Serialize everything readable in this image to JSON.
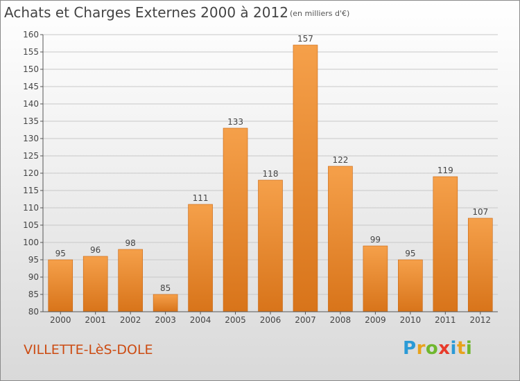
{
  "page": {
    "title": "Achats et Charges Externes 2000 à 2012",
    "subtitle": "(en milliers d'€)",
    "town": "VILLETTE-LèS-DOLE",
    "logo_letters": [
      "P",
      "r",
      "o",
      "x",
      "i",
      "t",
      "i"
    ],
    "logo_colors": [
      "#2a9ad6",
      "#e8a21c",
      "#6fb72e",
      "#e83b2b",
      "#2a9ad6",
      "#e8a21c",
      "#6fb72e"
    ]
  },
  "colors": {
    "bar_top": "#f5a04a",
    "bar_bottom": "#d8741a",
    "bar_edge": "#c96510",
    "grid": "#c8c8c8",
    "axis": "#555555",
    "text": "#444444",
    "town": "#cc4b12"
  },
  "chart_data": {
    "type": "bar",
    "title": "Achats et Charges Externes 2000 à 2012",
    "subtitle": "(en milliers d'€)",
    "categories": [
      "2000",
      "2001",
      "2002",
      "2003",
      "2004",
      "2005",
      "2006",
      "2007",
      "2008",
      "2009",
      "2010",
      "2011",
      "2012"
    ],
    "values": [
      95,
      96,
      98,
      85,
      111,
      133,
      118,
      157,
      122,
      99,
      95,
      119,
      107
    ],
    "data_labels": [
      "95",
      "96",
      "98",
      "85",
      "111",
      "133",
      "118",
      "157",
      "122",
      "99",
      "95",
      "119",
      "107"
    ],
    "ylim": [
      80,
      160
    ],
    "yticks": [
      80,
      85,
      90,
      95,
      100,
      105,
      110,
      115,
      120,
      125,
      130,
      135,
      140,
      145,
      150,
      155,
      160
    ],
    "grid": true,
    "xlabel": "",
    "ylabel": ""
  }
}
